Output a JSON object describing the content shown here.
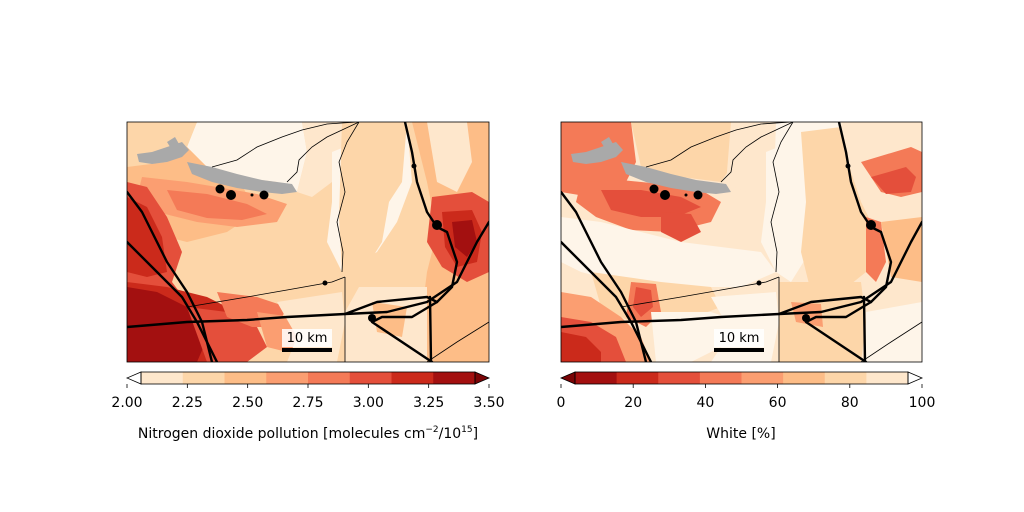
{
  "figure": {
    "panels": [
      {
        "name": "no2",
        "scalebar_label": "10 km",
        "colorbar": {
          "ticks": [
            "2.00",
            "2.25",
            "2.50",
            "2.75",
            "3.00",
            "3.25",
            "3.50"
          ],
          "label": "Nitrogen dioxide pollution [molecules cm",
          "label_sup": "−2",
          "label_mid": "/10",
          "label_sup2": "15",
          "label_end": "]",
          "extend": "both",
          "colors": [
            "#fef5e9",
            "#fee7cc",
            "#fdd6a9",
            "#fdbd87",
            "#fb9e71",
            "#f47a57",
            "#e44f3b",
            "#cb2a1b",
            "#a31010",
            "#7a0406"
          ]
        }
      },
      {
        "name": "white",
        "scalebar_label": "10 km",
        "colorbar": {
          "ticks": [
            "0",
            "20",
            "40",
            "60",
            "80",
            "100"
          ],
          "label": "White [%]",
          "extend": "both",
          "colors": [
            "#7a0406",
            "#a31010",
            "#cb2a1b",
            "#e44f3b",
            "#f47a57",
            "#fb9e71",
            "#fdbd87",
            "#fdd6a9",
            "#fee7cc",
            "#fef5e9"
          ]
        }
      }
    ],
    "water_color": "#a9a9a9",
    "road_color": "#000000"
  }
}
